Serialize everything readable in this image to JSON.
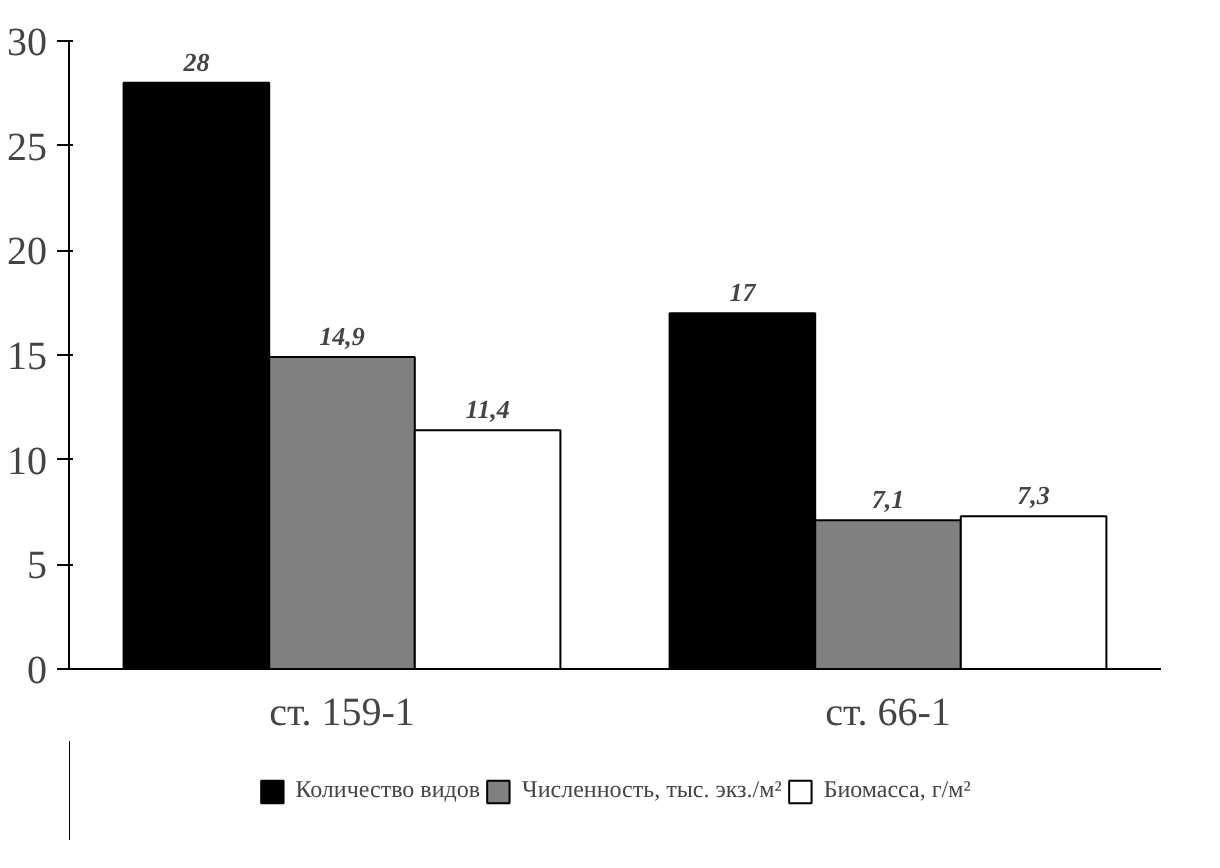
{
  "chart_data": {
    "type": "bar",
    "categories": [
      "ст. 159-1",
      "ст. 66-1"
    ],
    "series": [
      {
        "name": "Количество видов",
        "color": "#000000",
        "values": [
          28,
          17
        ],
        "value_labels": [
          "28",
          "17"
        ]
      },
      {
        "name": "Численность, тыс. экз./м²",
        "color": "#808080",
        "values": [
          14.9,
          7.1
        ],
        "value_labels": [
          "14,9",
          "7,1"
        ]
      },
      {
        "name": "Биомасса, г/м²",
        "color": "#ffffff",
        "values": [
          11.4,
          7.3
        ],
        "value_labels": [
          "11,4",
          "7,3"
        ]
      }
    ],
    "ylim": [
      0,
      30
    ],
    "yticks": [
      0,
      5,
      10,
      15,
      20,
      25,
      30
    ],
    "grid": false,
    "legend": "bottom"
  }
}
